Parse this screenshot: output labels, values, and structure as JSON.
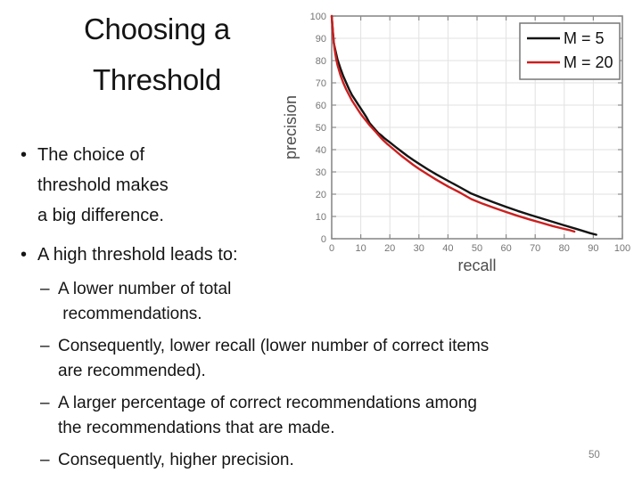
{
  "slide": {
    "title_lines": [
      "Choosing a",
      "Threshold"
    ],
    "page_number": "50"
  },
  "bullets": {
    "marker": "•",
    "sub_marker": "–",
    "b1_lines": [
      "The choice of",
      "threshold makes",
      "a big difference."
    ],
    "b2": "A high threshold leads to:",
    "sub1_lines": [
      "A lower number of total",
      " recommendations."
    ],
    "sub2_lines": [
      "Consequently, lower recall (lower number of correct items",
      "are recommended)."
    ],
    "sub3_lines": [
      "A larger percentage of correct recommendations among",
      "the recommendations that are made."
    ],
    "sub4_lines": [
      "Consequently, higher precision."
    ]
  },
  "chart_data": {
    "type": "line",
    "title": "",
    "xlabel": "recall",
    "ylabel": "precision",
    "xlim": [
      0,
      100
    ],
    "ylim": [
      0,
      100
    ],
    "xticks": [
      0,
      10,
      20,
      30,
      40,
      50,
      60,
      70,
      80,
      90,
      100
    ],
    "yticks": [
      0,
      10,
      20,
      30,
      40,
      50,
      60,
      70,
      80,
      90,
      100
    ],
    "grid": true,
    "legend_position": "top-right",
    "colors": {
      "grid": "#e2e2e2",
      "axis": "#8a8a8a",
      "tick_text": "#757575",
      "label_text": "#4d4d4d",
      "legend_border": "#777777",
      "legend_bg": "#ffffff",
      "legend_text": "#111111"
    },
    "series": [
      {
        "name": "M = 5",
        "color": "#141414",
        "points": [
          [
            0,
            100
          ],
          [
            0.7,
            88
          ],
          [
            1.2,
            85
          ],
          [
            2,
            80.5
          ],
          [
            3,
            76.5
          ],
          [
            4,
            73
          ],
          [
            5,
            70
          ],
          [
            6,
            67
          ],
          [
            7,
            64.5
          ],
          [
            8,
            62.5
          ],
          [
            9,
            60.5
          ],
          [
            10,
            58.5
          ],
          [
            11,
            56.5
          ],
          [
            12,
            54.5
          ],
          [
            13,
            52
          ],
          [
            14,
            50.5
          ],
          [
            15,
            49
          ],
          [
            16,
            47.5
          ],
          [
            17,
            46.5
          ],
          [
            18,
            45.3
          ],
          [
            19,
            44.3
          ],
          [
            20,
            43.3
          ],
          [
            22,
            41.2
          ],
          [
            24,
            39.2
          ],
          [
            26,
            37.2
          ],
          [
            28,
            35.4
          ],
          [
            30,
            33.7
          ],
          [
            33,
            31.2
          ],
          [
            36,
            28.9
          ],
          [
            40,
            26
          ],
          [
            44,
            23.2
          ],
          [
            48,
            20.3
          ],
          [
            52,
            18.2
          ],
          [
            56,
            16.2
          ],
          [
            60,
            14.3
          ],
          [
            64,
            12.5
          ],
          [
            68,
            10.8
          ],
          [
            72,
            9.2
          ],
          [
            76,
            7.6
          ],
          [
            80,
            6.0
          ],
          [
            84,
            4.5
          ],
          [
            87,
            3.3
          ],
          [
            89,
            2.5
          ],
          [
            91,
            1.8
          ]
        ]
      },
      {
        "name": "M = 20",
        "color": "#cc1f1f",
        "points": [
          [
            0,
            100
          ],
          [
            0.5,
            91
          ],
          [
            1,
            85
          ],
          [
            1.5,
            81
          ],
          [
            2,
            78
          ],
          [
            3,
            73.5
          ],
          [
            4,
            70
          ],
          [
            5,
            67
          ],
          [
            6,
            64.5
          ],
          [
            7,
            62
          ],
          [
            8,
            60
          ],
          [
            9,
            58
          ],
          [
            10,
            56
          ],
          [
            11,
            54.3
          ],
          [
            12,
            52.7
          ],
          [
            13,
            51
          ],
          [
            14,
            49.6
          ],
          [
            15,
            48.2
          ],
          [
            16,
            46.7
          ],
          [
            17,
            45.2
          ],
          [
            18,
            43.9
          ],
          [
            19,
            42.7
          ],
          [
            20,
            41.6
          ],
          [
            22,
            39.4
          ],
          [
            24,
            37.2
          ],
          [
            26,
            35.2
          ],
          [
            28,
            33.2
          ],
          [
            30,
            31.4
          ],
          [
            33,
            28.9
          ],
          [
            36,
            26.5
          ],
          [
            40,
            23.5
          ],
          [
            44,
            20.8
          ],
          [
            48,
            17.8
          ],
          [
            52,
            15.7
          ],
          [
            56,
            13.8
          ],
          [
            60,
            12.0
          ],
          [
            64,
            10.3
          ],
          [
            68,
            8.7
          ],
          [
            72,
            7.2
          ],
          [
            76,
            5.7
          ],
          [
            80,
            4.4
          ],
          [
            82,
            3.8
          ],
          [
            83.5,
            3.2
          ]
        ]
      }
    ]
  }
}
